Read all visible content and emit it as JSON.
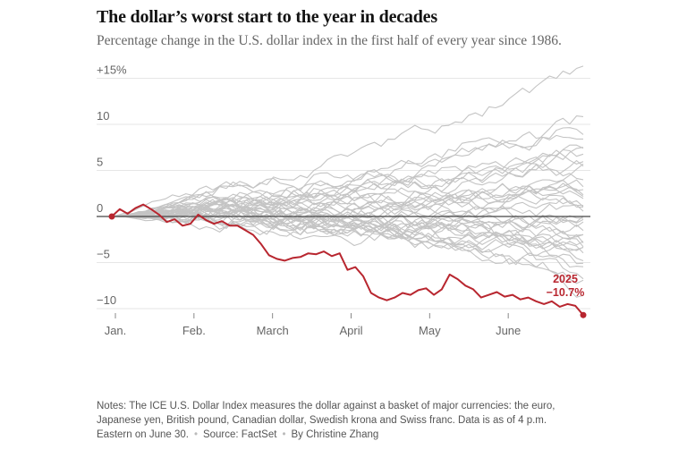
{
  "header": {
    "title": "The dollar’s worst start to the year in decades",
    "subtitle": "Percentage change in the U.S. dollar index in the first half of every year since 1986."
  },
  "notes": {
    "text": "Notes: The ICE U.S. Dollar Index measures the dollar against a basket of major currencies: the euro, Japanese yen, British pound, Canadian dollar, Swedish krona and Swiss franc. Data is as of 4 p.m. Eastern on June 30.",
    "source": "Source: FactSet",
    "byline": "By Christine Zhang"
  },
  "colors": {
    "highlight": "#b8262f",
    "background_series": "#c4c4c4",
    "zero_line": "#444444",
    "grid": "#e6e6e6"
  },
  "chart_data": {
    "type": "line",
    "ylim": [
      -11,
      16
    ],
    "y_ticks": [
      {
        "value": 15,
        "label": "+15%"
      },
      {
        "value": 10,
        "label": "10"
      },
      {
        "value": 5,
        "label": "5"
      },
      {
        "value": 0,
        "label": "0"
      },
      {
        "value": -5,
        "label": "−5"
      },
      {
        "value": -10,
        "label": "−10"
      }
    ],
    "x_tick_labels": [
      "Jan.",
      "Feb.",
      "March",
      "April",
      "May",
      "June"
    ],
    "highlight_series": {
      "name": "2025",
      "end_label": "−10.7%",
      "points": [
        [
          0.0,
          0.0
        ],
        [
          0.1,
          0.8
        ],
        [
          0.2,
          0.3
        ],
        [
          0.3,
          0.9
        ],
        [
          0.4,
          1.3
        ],
        [
          0.5,
          0.8
        ],
        [
          0.6,
          0.2
        ],
        [
          0.7,
          -0.6
        ],
        [
          0.8,
          -0.3
        ],
        [
          0.9,
          -1.0
        ],
        [
          1.0,
          -0.8
        ],
        [
          1.1,
          0.2
        ],
        [
          1.2,
          -0.4
        ],
        [
          1.3,
          -0.8
        ],
        [
          1.4,
          -0.5
        ],
        [
          1.5,
          -1.0
        ],
        [
          1.6,
          -1.0
        ],
        [
          1.7,
          -1.5
        ],
        [
          1.8,
          -2.0
        ],
        [
          1.9,
          -3.0
        ],
        [
          2.0,
          -4.2
        ],
        [
          2.1,
          -4.6
        ],
        [
          2.2,
          -4.8
        ],
        [
          2.3,
          -4.5
        ],
        [
          2.4,
          -4.4
        ],
        [
          2.5,
          -4.0
        ],
        [
          2.6,
          -4.1
        ],
        [
          2.7,
          -3.8
        ],
        [
          2.8,
          -4.3
        ],
        [
          2.9,
          -4.0
        ],
        [
          3.0,
          -5.8
        ],
        [
          3.1,
          -5.5
        ],
        [
          3.2,
          -6.5
        ],
        [
          3.3,
          -8.3
        ],
        [
          3.4,
          -8.8
        ],
        [
          3.5,
          -9.1
        ],
        [
          3.6,
          -8.8
        ],
        [
          3.7,
          -8.3
        ],
        [
          3.8,
          -8.5
        ],
        [
          3.9,
          -8.0
        ],
        [
          4.0,
          -7.8
        ],
        [
          4.1,
          -8.5
        ],
        [
          4.2,
          -7.9
        ],
        [
          4.3,
          -6.3
        ],
        [
          4.4,
          -6.8
        ],
        [
          4.5,
          -7.5
        ],
        [
          4.6,
          -7.9
        ],
        [
          4.7,
          -8.8
        ],
        [
          4.8,
          -8.5
        ],
        [
          4.9,
          -8.2
        ],
        [
          5.0,
          -8.7
        ],
        [
          5.1,
          -8.5
        ],
        [
          5.2,
          -9.0
        ],
        [
          5.3,
          -8.8
        ],
        [
          5.4,
          -9.2
        ],
        [
          5.5,
          -9.5
        ],
        [
          5.6,
          -9.2
        ],
        [
          5.7,
          -9.8
        ],
        [
          5.8,
          -9.5
        ],
        [
          5.9,
          -9.7
        ],
        [
          6.0,
          -10.7
        ]
      ]
    },
    "background_series": [
      {
        "final": 15.8,
        "peak": 16.5
      },
      {
        "final": 10.5,
        "peak": 11.0
      },
      {
        "final": 9.5,
        "peak": 10.2
      },
      {
        "final": 8.6,
        "peak": 9.2
      },
      {
        "final": 7.4,
        "peak": 8.0
      },
      {
        "final": 6.0,
        "peak": 6.6
      },
      {
        "final": 5.1,
        "peak": 5.8
      },
      {
        "final": 4.2,
        "peak": 4.8
      },
      {
        "final": 3.5,
        "peak": 4.1
      },
      {
        "final": 2.7,
        "peak": 3.4
      },
      {
        "final": 1.9,
        "peak": 2.6
      },
      {
        "final": 1.2,
        "peak": 2.0
      },
      {
        "final": 0.6,
        "peak": 1.4
      },
      {
        "final": 0.0,
        "peak": 1.0
      },
      {
        "final": -0.6,
        "peak": 0.8
      },
      {
        "final": -1.2,
        "peak": 0.7
      },
      {
        "final": -1.8,
        "peak": 0.6
      },
      {
        "final": -2.4,
        "peak": 0.6
      },
      {
        "final": -3.0,
        "peak": 0.5
      },
      {
        "final": -3.6,
        "peak": 0.5
      },
      {
        "final": -4.2,
        "peak": 0.5
      },
      {
        "final": -5.0,
        "peak": 0.4
      },
      {
        "final": -5.8,
        "peak": 0.4
      },
      {
        "final": -6.6,
        "peak": 0.4
      },
      {
        "final": -7.4,
        "peak": 0.3
      },
      {
        "final": -8.4,
        "peak": 0.3
      },
      {
        "final": 3.0,
        "peak": 3.6
      },
      {
        "final": -1.5,
        "peak": 0.7
      },
      {
        "final": 7.0,
        "peak": 7.5
      },
      {
        "final": -3.3,
        "peak": 0.5
      },
      {
        "final": 2.2,
        "peak": 2.9
      },
      {
        "final": -6.0,
        "peak": 0.4
      },
      {
        "final": 4.8,
        "peak": 5.4
      },
      {
        "final": -0.3,
        "peak": 0.9
      },
      {
        "final": 1.5,
        "peak": 2.2
      },
      {
        "final": -4.6,
        "peak": 0.4
      },
      {
        "final": 5.6,
        "peak": 6.2
      },
      {
        "final": -2.0,
        "peak": 0.6
      },
      {
        "final": 0.9,
        "peak": 1.7
      }
    ]
  }
}
